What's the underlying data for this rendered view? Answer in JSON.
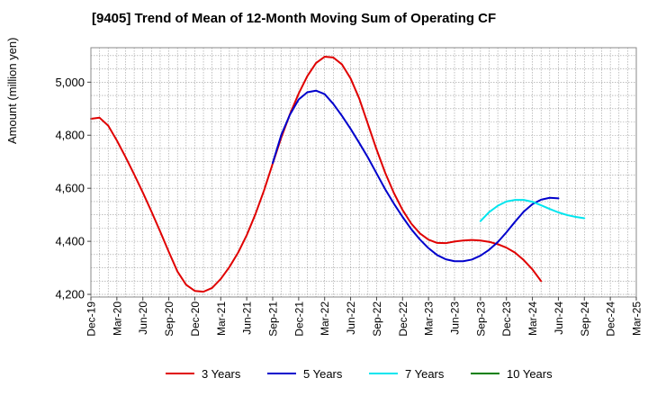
{
  "chart_data": {
    "type": "line",
    "title": "[9405]  Trend of Mean of 12-Month Moving Sum of Operating CF",
    "xlabel": "",
    "ylabel": "Amount (million yen)",
    "ylim": [
      4190,
      5130
    ],
    "yticks": [
      4200,
      4400,
      4600,
      4800,
      5000
    ],
    "ytick_labels": [
      "4,200",
      "4,400",
      "4,600",
      "4,800",
      "5,000"
    ],
    "x_start": "Dec-19",
    "x_months": 63,
    "xtick_labels": [
      "Dec-19",
      "Mar-20",
      "Jun-20",
      "Sep-20",
      "Dec-20",
      "Mar-21",
      "Jun-21",
      "Sep-21",
      "Dec-21",
      "Mar-22",
      "Jun-22",
      "Sep-22",
      "Dec-22",
      "Mar-23",
      "Jun-23",
      "Sep-23",
      "Dec-23",
      "Mar-24",
      "Jun-24",
      "Sep-24",
      "Dec-24",
      "Mar-25"
    ],
    "grid": true,
    "legend_position": "bottom",
    "series": [
      {
        "name": "3 Years",
        "color": "#e00000",
        "start_index": 0,
        "values": [
          4862,
          4866,
          4836,
          4780,
          4718,
          4652,
          4584,
          4512,
          4437,
          4360,
          4286,
          4236,
          4213,
          4210,
          4224,
          4258,
          4303,
          4357,
          4423,
          4502,
          4592,
          4693,
          4792,
          4880,
          4957,
          5023,
          5072,
          5096,
          5093,
          5067,
          5014,
          4938,
          4842,
          4746,
          4658,
          4582,
          4518,
          4467,
          4430,
          4406,
          4394,
          4393,
          4399,
          4403,
          4405,
          4403,
          4398,
          4389,
          4376,
          4357,
          4329,
          4294,
          4250
        ]
      },
      {
        "name": "5 Years",
        "color": "#0000cc",
        "start_index": 21,
        "values": [
          4695,
          4802,
          4878,
          4935,
          4962,
          4968,
          4955,
          4918,
          4873,
          4824,
          4771,
          4716,
          4656,
          4596,
          4542,
          4492,
          4446,
          4407,
          4374,
          4348,
          4332,
          4325,
          4325,
          4331,
          4346,
          4368,
          4397,
          4434,
          4474,
          4512,
          4540,
          4557,
          4564,
          4562
        ]
      },
      {
        "name": "7 Years",
        "color": "#00e5ee",
        "start_index": 45,
        "values": [
          4476,
          4510,
          4534,
          4550,
          4556,
          4556,
          4549,
          4536,
          4522,
          4509,
          4499,
          4492,
          4487
        ]
      },
      {
        "name": "10 Years",
        "color": "#008000",
        "start_index": 0,
        "values": []
      }
    ]
  }
}
